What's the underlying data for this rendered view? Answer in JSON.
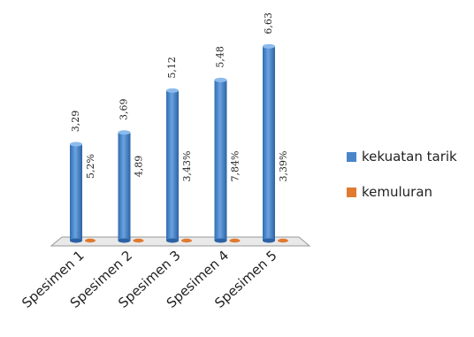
{
  "chart_data": {
    "type": "bar",
    "categories": [
      "Spesimen 1",
      "Spesimen 2",
      "Spesimen 3",
      "Spesimen 4",
      "Spesimen 5"
    ],
    "series": [
      {
        "name": "kekuatan tarik",
        "values": [
          3.29,
          3.69,
          5.12,
          5.48,
          6.63
        ],
        "labels": [
          "3,29",
          "3,69",
          "5,12",
          "5,48",
          "6,63"
        ],
        "color": "#4a86c8"
      },
      {
        "name": "kemuluran",
        "values": [
          0.052,
          0.0489,
          0.0343,
          0.0784,
          0.0339
        ],
        "labels": [
          "5,2%",
          "4,89",
          "3,43%",
          "7,84%",
          "3,39%"
        ],
        "color": "#e07a30"
      }
    ],
    "legend_position": "right",
    "ylim": [
      0,
      6.7
    ],
    "grid": false
  }
}
